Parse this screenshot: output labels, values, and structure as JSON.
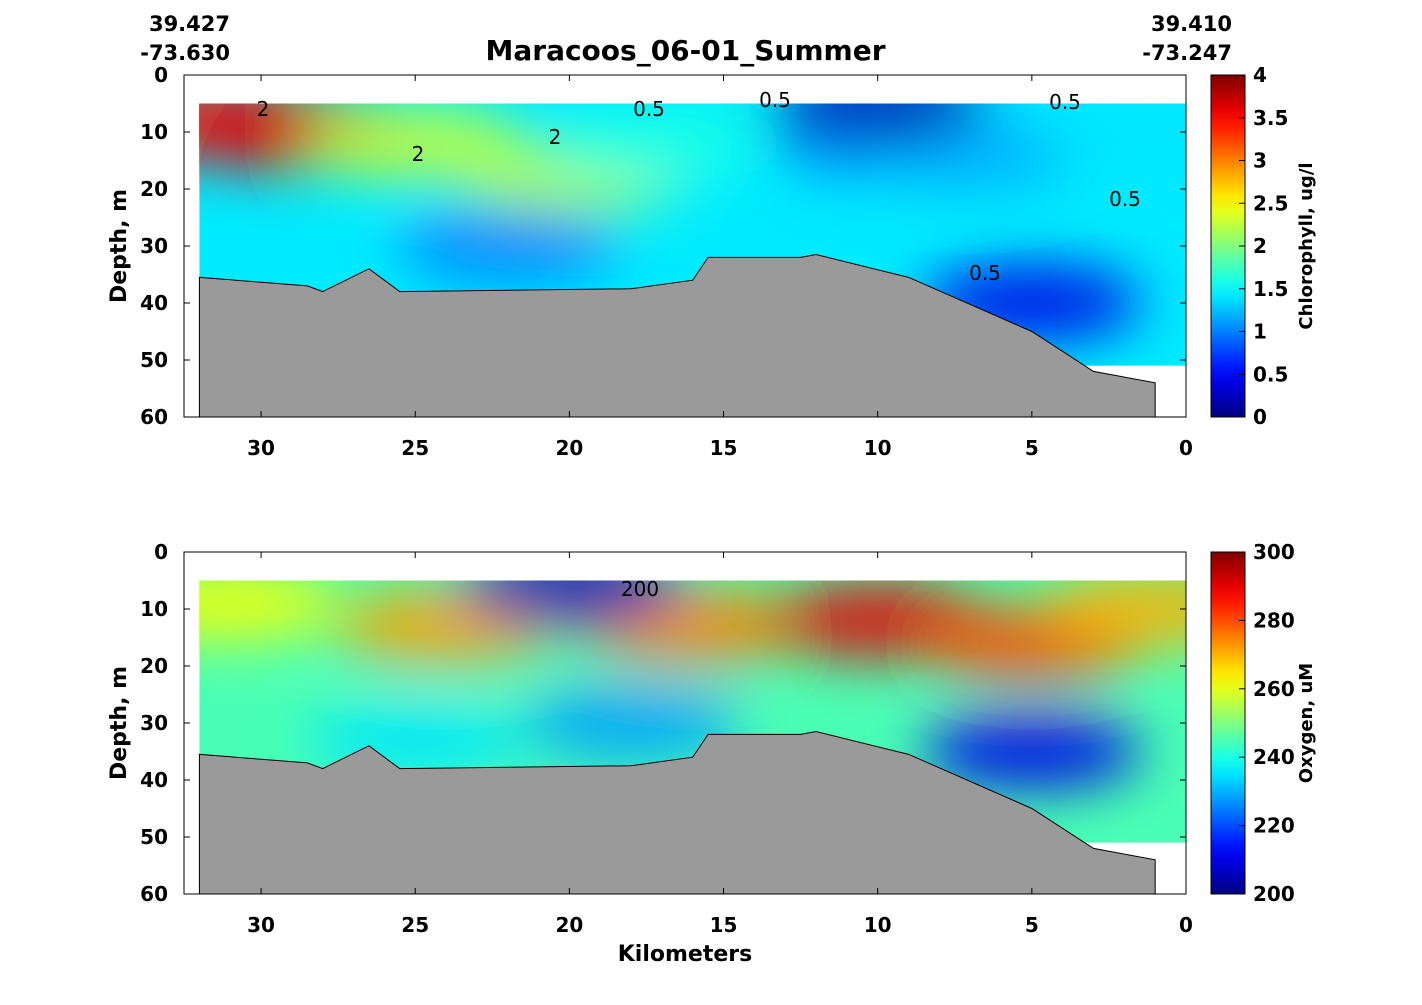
{
  "title": "Maracoos_06-01_Summer",
  "corner_left": {
    "lat": "39.427",
    "lon": "-73.630"
  },
  "corner_right": {
    "lat": "39.410",
    "lon": "-73.247"
  },
  "chart_data": [
    {
      "type": "heatmap",
      "title": "Maracoos_06-01_Summer",
      "xlabel": "",
      "ylabel": "Depth, m",
      "colorbar_label": "Chlorophyll, ug/l",
      "xlim": [
        32.5,
        0
      ],
      "ylim": [
        60,
        0
      ],
      "x_ticks": [
        30,
        25,
        20,
        15,
        10,
        5,
        0
      ],
      "y_ticks": [
        0,
        10,
        20,
        30,
        40,
        50,
        60
      ],
      "colorbar_range": [
        0,
        4
      ],
      "colorbar_ticks": [
        0,
        0.5,
        1,
        1.5,
        2,
        2.5,
        3,
        3.5,
        4
      ],
      "contour_labels": [
        "2",
        "2",
        "2",
        "0.5",
        "0.5",
        "0.5",
        "0.5",
        "0.5"
      ],
      "bottom_profile_km": [
        32,
        28.5,
        28,
        26.5,
        25.5,
        18,
        16,
        15.5,
        12.5,
        12,
        9,
        5,
        3,
        1
      ],
      "bottom_profile_depth": [
        35.5,
        37,
        38,
        34,
        38,
        37.5,
        36,
        32,
        32,
        31.5,
        35.5,
        45,
        52,
        54
      ],
      "data_extent": {
        "x": [
          32,
          0
        ],
        "y_top": 5,
        "y_bottom": 51
      },
      "field": [
        {
          "km": 32,
          "depth": 8,
          "value": 3.4
        },
        {
          "km": 29,
          "depth": 10,
          "value": 3.6
        },
        {
          "km": 25,
          "depth": 12,
          "value": 2.3
        },
        {
          "km": 20,
          "depth": 18,
          "value": 2.2
        },
        {
          "km": 17,
          "depth": 12,
          "value": 1.6
        },
        {
          "km": 10,
          "depth": 12,
          "value": 1.1
        },
        {
          "km": 7,
          "depth": 14,
          "value": 1.2
        },
        {
          "km": 1,
          "depth": 10,
          "value": 1.4
        },
        {
          "km": 22,
          "depth": 30,
          "value": 1.0
        },
        {
          "km": 5,
          "depth": 40,
          "value": 0.4
        },
        {
          "km": 10,
          "depth": 5,
          "value": 0.2
        }
      ],
      "colormap": "jet"
    },
    {
      "type": "heatmap",
      "title": "",
      "xlabel": "Kilometers",
      "ylabel": "Depth, m",
      "colorbar_label": "Oxygen, uM",
      "xlim": [
        32.5,
        0
      ],
      "ylim": [
        60,
        0
      ],
      "x_ticks": [
        30,
        25,
        20,
        15,
        10,
        5,
        0
      ],
      "y_ticks": [
        0,
        10,
        20,
        30,
        40,
        50,
        60
      ],
      "colorbar_range": [
        200,
        300
      ],
      "colorbar_ticks": [
        200,
        220,
        240,
        260,
        280,
        300
      ],
      "contour_labels": [
        "200"
      ],
      "bottom_profile_km": [
        32,
        28.5,
        28,
        26.5,
        25.5,
        18,
        16,
        15.5,
        12.5,
        12,
        9,
        5,
        3,
        1
      ],
      "bottom_profile_depth": [
        35.5,
        37,
        38,
        34,
        38,
        37.5,
        36,
        32,
        32,
        31.5,
        35.5,
        45,
        52,
        54
      ],
      "data_extent": {
        "x": [
          32,
          0
        ],
        "y_top": 5,
        "y_bottom": 51
      },
      "field": [
        {
          "km": 31,
          "depth": 9,
          "value": 262
        },
        {
          "km": 24,
          "depth": 13,
          "value": 272
        },
        {
          "km": 16,
          "depth": 13,
          "value": 275
        },
        {
          "km": 10,
          "depth": 12,
          "value": 290
        },
        {
          "km": 5,
          "depth": 16,
          "value": 280
        },
        {
          "km": 1,
          "depth": 10,
          "value": 270
        },
        {
          "km": 25,
          "depth": 33,
          "value": 235
        },
        {
          "km": 18,
          "depth": 30,
          "value": 228
        },
        {
          "km": 5,
          "depth": 35,
          "value": 210
        },
        {
          "km": 20,
          "depth": 6,
          "value": 205
        }
      ],
      "colormap": "jet"
    }
  ]
}
